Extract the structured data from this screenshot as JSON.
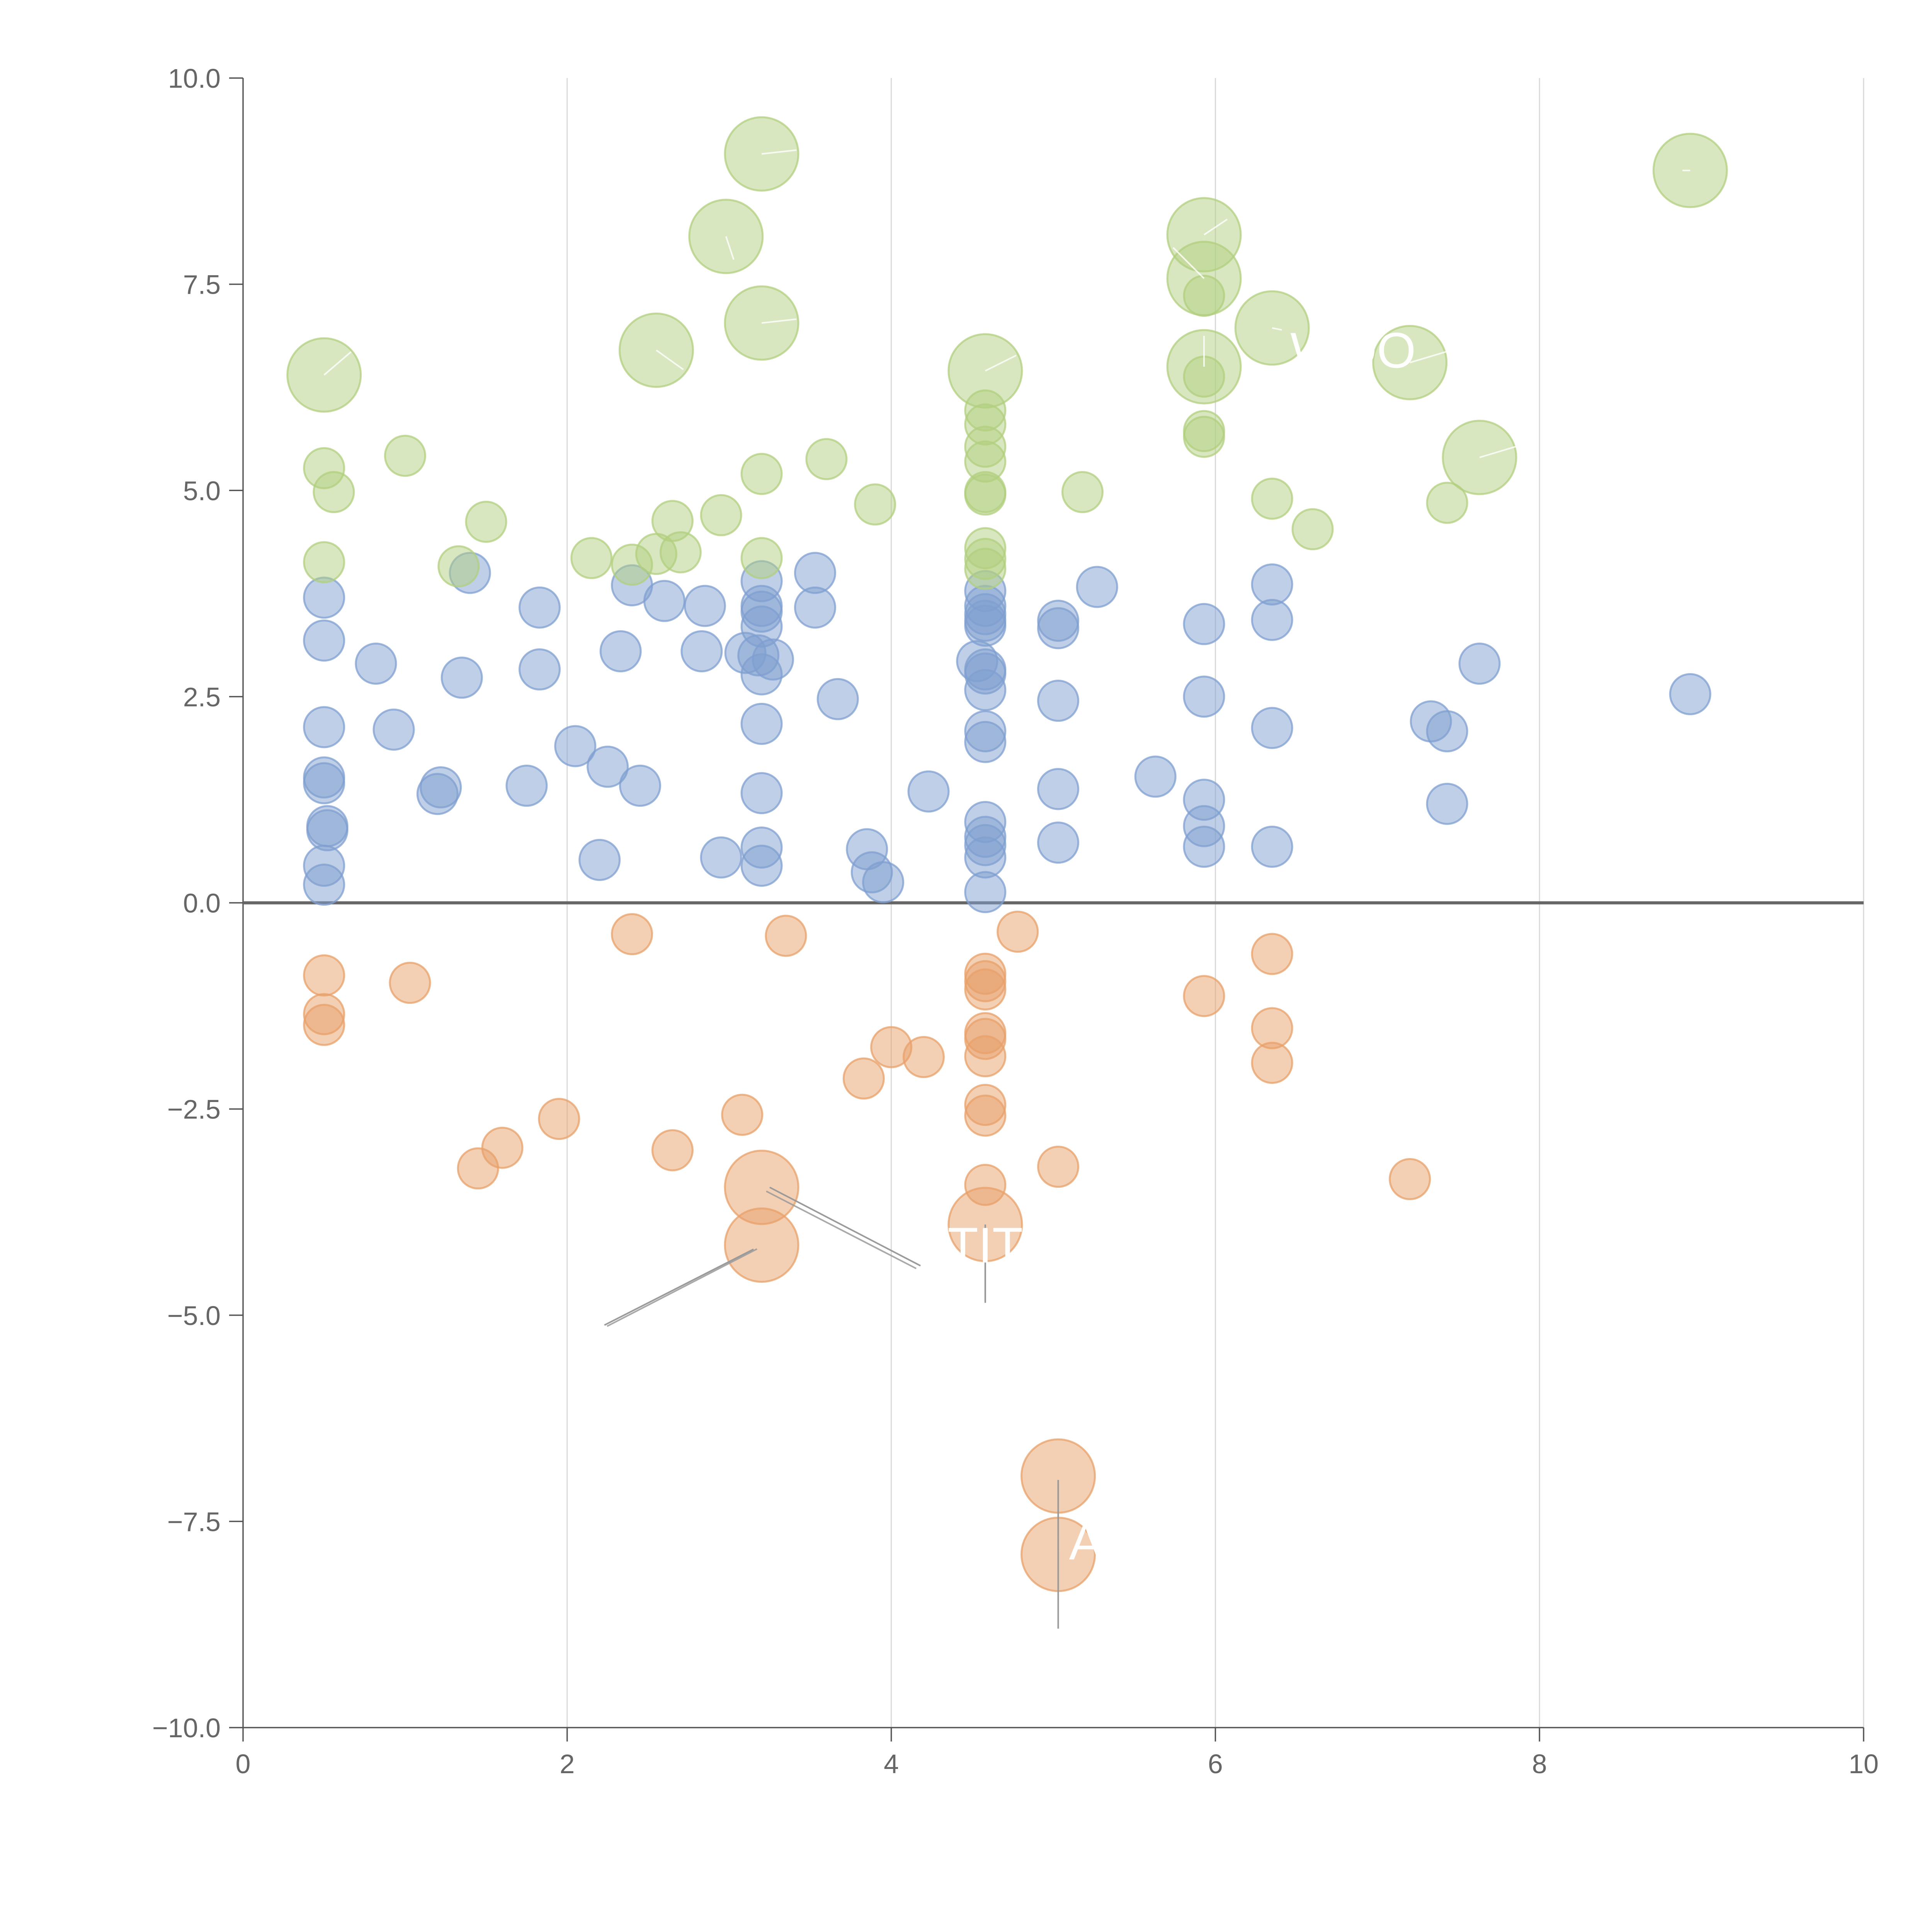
{
  "colors": {
    "negative": "#e8a06a",
    "low": "#7f9fd0",
    "high": "#b2cf7f",
    "grid": "#d9d9d9",
    "axis": "#555555",
    "tick_text": "#666666",
    "label_text": "#ffffff",
    "leader_light": "#ffffff",
    "leader_dark": "#9a9a9a"
  },
  "chart_data": {
    "type": "scatter",
    "variant": "bubble",
    "title": "",
    "xlabel": "",
    "ylabel": "",
    "xlim": [
      0,
      10
    ],
    "ylim": [
      -10,
      10
    ],
    "x_ticks": [
      "0",
      "2",
      "4",
      "6",
      "8",
      "10"
    ],
    "y_ticks": [
      "10.0",
      "7.5",
      "5.0",
      "2.5",
      "0.0",
      "−2.5",
      "−5.0",
      "−7.5",
      "−10.0"
    ],
    "x_tick_values": [
      0,
      2,
      4,
      6,
      8,
      10
    ],
    "y_tick_values": [
      10,
      7.5,
      5,
      2.5,
      0,
      -2.5,
      -5,
      -7.5,
      -10
    ],
    "vertical_grid": true,
    "horizontal_grid": false,
    "zero_line": true,
    "legend": "none",
    "series": [
      {
        "name": "negative",
        "color_key": "negative",
        "points": [
          [
            0.5,
            -0.88,
            1
          ],
          [
            0.5,
            -1.35,
            1
          ],
          [
            0.5,
            -1.48,
            1
          ],
          [
            1.03,
            -0.97,
            1
          ],
          [
            1.45,
            -3.22,
            1
          ],
          [
            1.6,
            -2.97,
            1
          ],
          [
            1.95,
            -2.62,
            1
          ],
          [
            2.4,
            -0.38,
            1
          ],
          [
            2.65,
            -3.0,
            1
          ],
          [
            3.08,
            -2.57,
            1
          ],
          [
            3.35,
            -0.4,
            1
          ],
          [
            3.83,
            -2.13,
            1
          ],
          [
            4.0,
            -1.75,
            1
          ],
          [
            4.2,
            -1.87,
            1
          ],
          [
            4.58,
            -0.86,
            1
          ],
          [
            4.58,
            -0.95,
            1
          ],
          [
            4.58,
            -1.05,
            1
          ],
          [
            4.58,
            -1.58,
            1
          ],
          [
            4.58,
            -1.65,
            1
          ],
          [
            4.58,
            -1.86,
            1
          ],
          [
            4.58,
            -2.45,
            1
          ],
          [
            4.58,
            -2.58,
            1
          ],
          [
            4.58,
            -3.42,
            1
          ],
          [
            4.78,
            -0.35,
            1
          ],
          [
            5.03,
            -3.2,
            1
          ],
          [
            5.93,
            -1.13,
            1
          ],
          [
            6.35,
            -0.62,
            1
          ],
          [
            6.35,
            -1.52,
            1
          ],
          [
            6.35,
            -1.94,
            1
          ],
          [
            7.2,
            -3.35,
            1
          ],
          [
            3.2,
            -3.45,
            2
          ],
          [
            3.2,
            -4.15,
            2
          ],
          [
            4.58,
            -3.9,
            2
          ],
          [
            5.03,
            -6.95,
            2
          ],
          [
            5.03,
            -7.9,
            2
          ]
        ]
      },
      {
        "name": "low",
        "color_key": "low",
        "points": [
          [
            0.5,
            0.22,
            1
          ],
          [
            0.5,
            0.45,
            1
          ],
          [
            0.52,
            0.88,
            1
          ],
          [
            0.52,
            0.93,
            1
          ],
          [
            0.5,
            1.45,
            1
          ],
          [
            0.5,
            1.52,
            1
          ],
          [
            0.5,
            2.13,
            1
          ],
          [
            0.5,
            3.18,
            1
          ],
          [
            0.5,
            3.7,
            1
          ],
          [
            0.82,
            2.9,
            1
          ],
          [
            0.93,
            2.1,
            1
          ],
          [
            1.2,
            1.32,
            1
          ],
          [
            1.22,
            1.4,
            1
          ],
          [
            1.35,
            2.73,
            1
          ],
          [
            1.4,
            4.0,
            1
          ],
          [
            1.75,
            1.42,
            1
          ],
          [
            1.83,
            2.83,
            1
          ],
          [
            1.83,
            3.58,
            1
          ],
          [
            2.05,
            1.9,
            1
          ],
          [
            2.2,
            0.52,
            1
          ],
          [
            2.25,
            1.65,
            1
          ],
          [
            2.33,
            3.05,
            1
          ],
          [
            2.4,
            3.85,
            1
          ],
          [
            2.45,
            1.42,
            1
          ],
          [
            2.6,
            3.66,
            1
          ],
          [
            2.83,
            3.05,
            1
          ],
          [
            2.85,
            3.6,
            1
          ],
          [
            2.95,
            0.55,
            1
          ],
          [
            3.1,
            3.03,
            1
          ],
          [
            3.18,
            3.0,
            1
          ],
          [
            3.2,
            0.45,
            1
          ],
          [
            3.2,
            0.67,
            1
          ],
          [
            3.2,
            1.33,
            1
          ],
          [
            3.2,
            2.17,
            1
          ],
          [
            3.2,
            2.77,
            1
          ],
          [
            3.2,
            3.35,
            1
          ],
          [
            3.2,
            3.53,
            1
          ],
          [
            3.2,
            3.6,
            1
          ],
          [
            3.2,
            3.9,
            1
          ],
          [
            3.27,
            2.95,
            1
          ],
          [
            3.53,
            3.58,
            1
          ],
          [
            3.53,
            4.0,
            1
          ],
          [
            3.67,
            2.47,
            1
          ],
          [
            3.85,
            0.65,
            1
          ],
          [
            3.88,
            0.37,
            1
          ],
          [
            3.95,
            0.25,
            1
          ],
          [
            4.23,
            1.35,
            1
          ],
          [
            4.53,
            2.93,
            1
          ],
          [
            4.58,
            0.13,
            1
          ],
          [
            4.58,
            0.55,
            1
          ],
          [
            4.58,
            0.7,
            1
          ],
          [
            4.58,
            0.8,
            1
          ],
          [
            4.58,
            0.98,
            1
          ],
          [
            4.58,
            1.95,
            1
          ],
          [
            4.58,
            2.08,
            1
          ],
          [
            4.58,
            2.58,
            1
          ],
          [
            4.58,
            2.78,
            1
          ],
          [
            4.58,
            2.83,
            1
          ],
          [
            4.58,
            3.36,
            1
          ],
          [
            4.58,
            3.42,
            1
          ],
          [
            4.58,
            3.5,
            1
          ],
          [
            4.58,
            3.6,
            1
          ],
          [
            4.58,
            3.78,
            1
          ],
          [
            5.03,
            0.73,
            1
          ],
          [
            5.03,
            1.38,
            1
          ],
          [
            5.03,
            2.45,
            1
          ],
          [
            5.03,
            3.33,
            1
          ],
          [
            5.03,
            3.42,
            1
          ],
          [
            5.27,
            3.83,
            1
          ],
          [
            5.63,
            1.53,
            1
          ],
          [
            5.93,
            0.68,
            1
          ],
          [
            5.93,
            0.93,
            1
          ],
          [
            5.93,
            1.25,
            1
          ],
          [
            5.93,
            2.5,
            1
          ],
          [
            5.93,
            3.38,
            1
          ],
          [
            6.35,
            0.68,
            1
          ],
          [
            6.35,
            2.12,
            1
          ],
          [
            6.35,
            3.43,
            1
          ],
          [
            6.35,
            3.86,
            1
          ],
          [
            7.33,
            2.2,
            1
          ],
          [
            7.43,
            1.2,
            1
          ],
          [
            7.43,
            2.08,
            1
          ],
          [
            7.63,
            2.9,
            1
          ],
          [
            8.93,
            2.53,
            1
          ]
        ]
      },
      {
        "name": "high",
        "color_key": "high",
        "points": [
          [
            0.5,
            4.13,
            1
          ],
          [
            0.5,
            5.27,
            1
          ],
          [
            0.56,
            4.98,
            1
          ],
          [
            1.0,
            5.42,
            1
          ],
          [
            1.33,
            4.08,
            1
          ],
          [
            1.5,
            4.62,
            1
          ],
          [
            2.15,
            4.18,
            1
          ],
          [
            2.4,
            4.1,
            1
          ],
          [
            2.55,
            4.23,
            1
          ],
          [
            2.65,
            4.63,
            1
          ],
          [
            2.7,
            4.25,
            1
          ],
          [
            2.95,
            4.7,
            1
          ],
          [
            3.2,
            4.18,
            1
          ],
          [
            3.2,
            5.2,
            1
          ],
          [
            3.6,
            5.38,
            1
          ],
          [
            3.9,
            4.83,
            1
          ],
          [
            4.58,
            4.05,
            1
          ],
          [
            4.58,
            4.17,
            1
          ],
          [
            4.58,
            4.3,
            1
          ],
          [
            4.58,
            4.95,
            1
          ],
          [
            4.58,
            4.98,
            1
          ],
          [
            4.58,
            5.35,
            1
          ],
          [
            4.58,
            5.53,
            1
          ],
          [
            4.58,
            5.8,
            1
          ],
          [
            4.58,
            5.97,
            1
          ],
          [
            5.18,
            4.98,
            1
          ],
          [
            5.93,
            5.65,
            1
          ],
          [
            5.93,
            5.72,
            1
          ],
          [
            5.93,
            6.38,
            1
          ],
          [
            5.93,
            7.36,
            1
          ],
          [
            6.35,
            4.9,
            1
          ],
          [
            6.6,
            4.53,
            1
          ],
          [
            7.43,
            4.85,
            1
          ],
          [
            0.5,
            6.4,
            2
          ],
          [
            2.55,
            6.7,
            2
          ],
          [
            2.98,
            8.08,
            2
          ],
          [
            3.2,
            9.08,
            2
          ],
          [
            3.2,
            7.03,
            2
          ],
          [
            4.58,
            6.45,
            2
          ],
          [
            5.93,
            8.1,
            2
          ],
          [
            5.93,
            7.57,
            2
          ],
          [
            5.93,
            6.5,
            2
          ],
          [
            6.35,
            6.97,
            2
          ],
          [
            7.2,
            6.55,
            2
          ],
          [
            7.63,
            5.4,
            2
          ],
          [
            8.93,
            8.88,
            2
          ]
        ]
      }
    ],
    "annotations": [
      {
        "text": "WOO",
        "x": 6.85,
        "y": 6.7
      },
      {
        "text": "TIT",
        "x": 4.58,
        "y": -4.15
      },
      {
        "text": "A",
        "x": 5.2,
        "y": -7.75
      }
    ]
  }
}
